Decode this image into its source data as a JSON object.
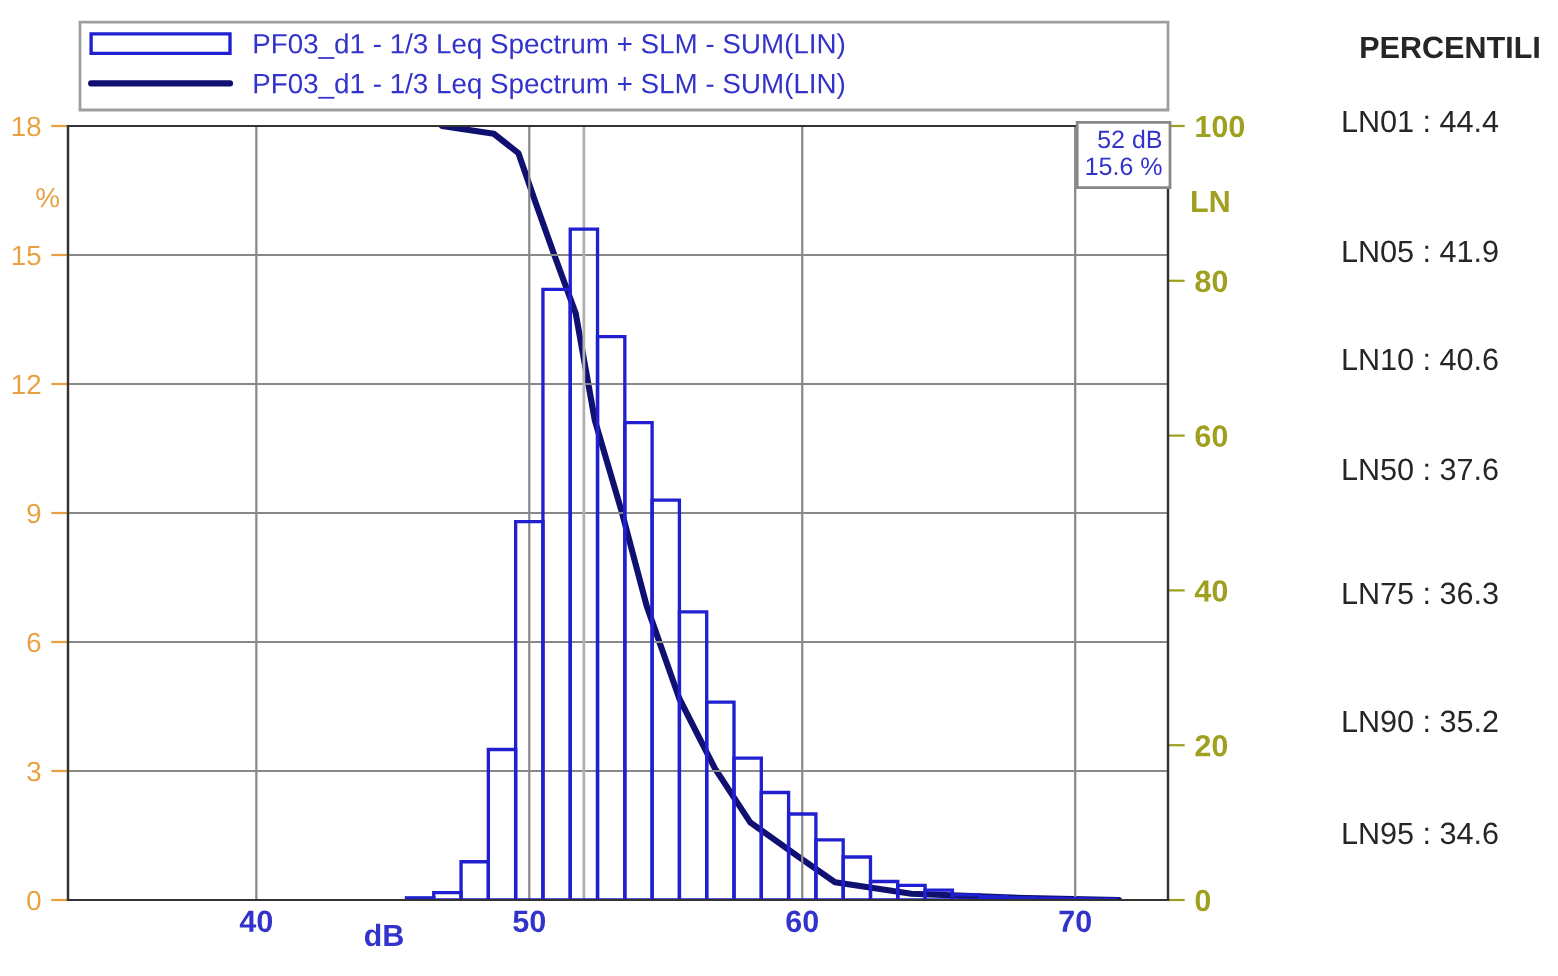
{
  "chart_data": {
    "type": "histogram",
    "xlabel": "dB",
    "ylabel": "%",
    "y2label": "LN",
    "xlim": [
      33.1,
      73.4
    ],
    "xticks": [
      40,
      50,
      60,
      70
    ],
    "ylim": [
      0,
      18
    ],
    "yticks": [
      0,
      3,
      6,
      9,
      12,
      15,
      18
    ],
    "y2lim": [
      0,
      100
    ],
    "y2ticks": [
      0,
      20,
      40,
      60,
      80,
      100
    ],
    "grid": true,
    "legend": "top",
    "series": [
      {
        "name": "PF03_d1 - 1/3 Leq Spectrum + SLM - SUM(LIN)",
        "color": "#2020d0",
        "bins": [
          45.5,
          46.5,
          47.5,
          48.5,
          49.5,
          50.5,
          51.5,
          52.5,
          53.5,
          54.5,
          55.5,
          56.5,
          57.5,
          58.5,
          59.5,
          60.5,
          61.5,
          62.5,
          63.5,
          64.5,
          65.5,
          66.5,
          67.5,
          68.5,
          69.5,
          70.5,
          71.5
        ],
        "values": [
          0.05,
          0.17,
          0.89,
          3.5,
          8.8,
          14.2,
          15.6,
          13.1,
          11.1,
          9.3,
          6.7,
          4.6,
          3.3,
          2.5,
          2.0,
          1.4,
          1.0,
          0.43,
          0.34,
          0.23,
          0.12,
          0.08,
          0.05,
          0.04,
          0.03,
          0.02
        ]
      },
      {
        "type": "line",
        "axis": "y2",
        "name": "PF03_d1 - 1/3 Leq Spectrum + SLM - SUM(LIN)",
        "color": "#101070",
        "x": [
          46.8,
          48.7,
          49.6,
          50.2,
          50.9,
          51.7,
          52.4,
          53.4,
          54.3,
          55.5,
          56.8,
          58.1,
          59.9,
          61.2,
          64.0,
          67.7,
          71.6
        ],
        "values": [
          100,
          99,
          96.5,
          90.4,
          83.5,
          75.8,
          62,
          50,
          38,
          26,
          17,
          10,
          5.5,
          2.3,
          0.8,
          0.3,
          0
        ]
      }
    ],
    "ref_lines": [
      {
        "axis": "x",
        "value": 52,
        "color": "#b0b0b0"
      }
    ],
    "annotations": [
      "52 dB\n15.6 %",
      "PERCENTILI",
      "LN01 : 44.4",
      "LN05 : 41.9",
      "LN10 : 40.6",
      "LN50 : 37.6",
      "LN75 : 36.3",
      "LN90 : 35.2",
      "LN95 : 34.6"
    ]
  }
}
